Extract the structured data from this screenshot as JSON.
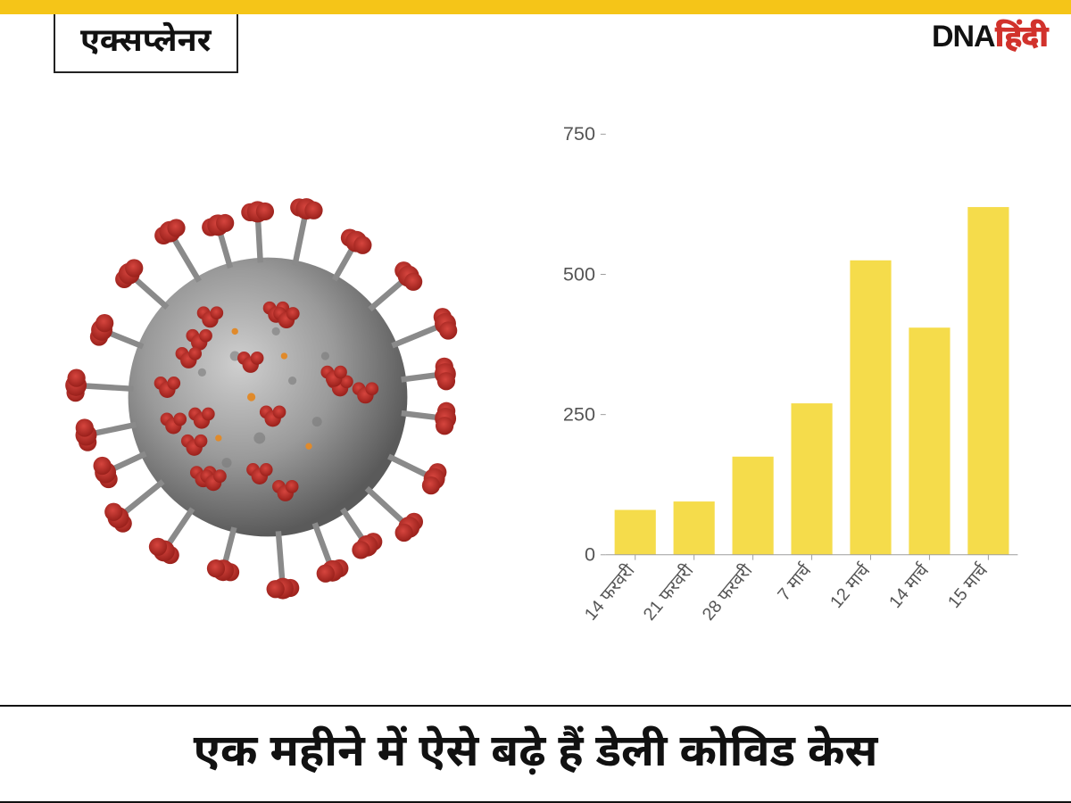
{
  "header": {
    "category_label": "एक्सप्लेनर",
    "logo_primary": "DNA",
    "logo_secondary": "हिंदी",
    "banner_color": "#f5c518"
  },
  "illustration": {
    "semantic": "coronavirus-illustration",
    "body_color": "#9a9a9a",
    "body_shadow": "#6f6f6f",
    "spike_color": "#b92620",
    "spike_dark": "#8f1a15",
    "accent_color": "#e08a2b"
  },
  "chart": {
    "type": "bar",
    "categories": [
      "14 फरवरी",
      "21 फरवरी",
      "28 फरवरी",
      "7 मार्च",
      "12 मार्च",
      "14 मार्च",
      "15 मार्च"
    ],
    "values": [
      80,
      95,
      175,
      270,
      525,
      405,
      620
    ],
    "bar_color": "#f5dc4b",
    "ylim": [
      0,
      750
    ],
    "yticks": [
      0,
      250,
      500,
      750
    ],
    "axis_color": "#9e9e9e",
    "tick_label_color": "#555555",
    "background_color": "#ffffff",
    "bar_width_ratio": 0.7,
    "xlabel_rotation": -50,
    "label_fontsize": 20,
    "ytick_fontsize": 22
  },
  "headline": {
    "text": "एक महीने में ऐसे बढ़े हैं डेली कोविड केस",
    "fontsize": 50,
    "color": "#111111"
  }
}
